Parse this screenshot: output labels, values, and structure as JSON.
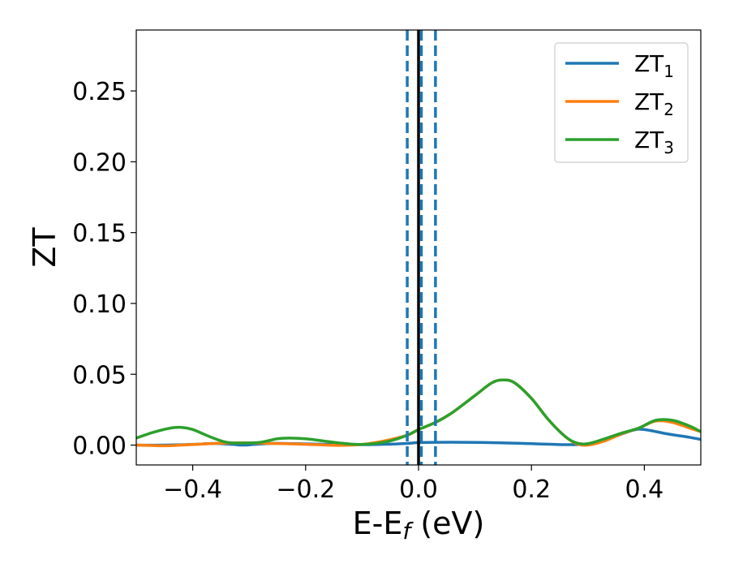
{
  "chart_data": {
    "type": "line",
    "xlabel": "E-E",
    "xlabel_sub": "f",
    "xlabel_unit": " (eV)",
    "ylabel": "ZT",
    "xlim": [
      -0.5,
      0.5
    ],
    "ylim": [
      -0.014,
      0.293
    ],
    "xticks": [
      -0.4,
      -0.2,
      0.0,
      0.2,
      0.4
    ],
    "xtick_labels": [
      "−0.4",
      "−0.2",
      "0.0",
      "0.2",
      "0.4"
    ],
    "yticks": [
      0.0,
      0.05,
      0.1,
      0.15,
      0.2,
      0.25
    ],
    "ytick_labels": [
      "0.00",
      "0.05",
      "0.10",
      "0.15",
      "0.20",
      "0.25"
    ],
    "grid": false,
    "legend_position": "top-right",
    "vlines": [
      {
        "x": 0.0,
        "style": "solid",
        "color": "#000000"
      },
      {
        "x": -0.02,
        "style": "dashed",
        "color": "#1f77b4"
      },
      {
        "x": 0.005,
        "style": "dashed",
        "color": "#1f77b4"
      },
      {
        "x": 0.03,
        "style": "dashed",
        "color": "#1f77b4"
      }
    ],
    "series": [
      {
        "name": "ZT",
        "name_sub": "1",
        "color": "#1f77b4",
        "x": [
          -0.5,
          -0.45,
          -0.4,
          -0.36,
          -0.33,
          -0.31,
          -0.29,
          -0.26,
          -0.22,
          -0.18,
          -0.14,
          -0.1,
          -0.06,
          -0.02,
          0.0,
          0.03,
          0.08,
          0.12,
          0.16,
          0.2,
          0.24,
          0.27,
          0.3,
          0.34,
          0.38,
          0.4,
          0.44,
          0.48,
          0.5
        ],
        "y": [
          0.0,
          0.0,
          0.0005,
          0.0012,
          0.0005,
          0.0,
          0.0005,
          0.0012,
          0.001,
          0.0007,
          0.0004,
          0.0003,
          0.0006,
          0.0012,
          0.0018,
          0.002,
          0.002,
          0.0018,
          0.0015,
          0.001,
          0.0005,
          0.0003,
          0.001,
          0.005,
          0.0105,
          0.011,
          0.008,
          0.0055,
          0.004
        ]
      },
      {
        "name": "ZT",
        "name_sub": "2",
        "color": "#ff7f0e",
        "x": [
          -0.5,
          -0.45,
          -0.42,
          -0.38,
          -0.34,
          -0.3,
          -0.26,
          -0.22,
          -0.18,
          -0.14,
          -0.1,
          -0.06,
          -0.02,
          0.0,
          0.03,
          0.06,
          0.1,
          0.13,
          0.15,
          0.17,
          0.2,
          0.23,
          0.26,
          0.28,
          0.3,
          0.33,
          0.36,
          0.39,
          0.42,
          0.45,
          0.48,
          0.5
        ],
        "y": [
          0.0,
          -0.0005,
          0.0,
          0.0008,
          0.0015,
          0.0016,
          0.0012,
          0.0008,
          0.0003,
          -0.0002,
          0.0005,
          0.003,
          0.007,
          0.011,
          0.016,
          0.023,
          0.035,
          0.044,
          0.046,
          0.044,
          0.033,
          0.018,
          0.006,
          0.001,
          0.0,
          0.003,
          0.008,
          0.012,
          0.017,
          0.016,
          0.012,
          0.0095
        ]
      },
      {
        "name": "ZT",
        "name_sub": "3",
        "color": "#2ca02c",
        "x": [
          -0.5,
          -0.47,
          -0.44,
          -0.42,
          -0.4,
          -0.37,
          -0.34,
          -0.31,
          -0.28,
          -0.25,
          -0.23,
          -0.2,
          -0.17,
          -0.14,
          -0.11,
          -0.08,
          -0.05,
          -0.02,
          0.0,
          0.03,
          0.06,
          0.1,
          0.13,
          0.15,
          0.17,
          0.2,
          0.23,
          0.26,
          0.28,
          0.3,
          0.33,
          0.36,
          0.39,
          0.42,
          0.45,
          0.48,
          0.5
        ],
        "y": [
          0.005,
          0.009,
          0.012,
          0.0125,
          0.011,
          0.006,
          0.002,
          0.0015,
          0.002,
          0.0045,
          0.005,
          0.0045,
          0.003,
          0.0015,
          0.0005,
          0.001,
          0.003,
          0.007,
          0.011,
          0.016,
          0.023,
          0.035,
          0.044,
          0.046,
          0.044,
          0.033,
          0.018,
          0.006,
          0.0015,
          0.001,
          0.0045,
          0.0085,
          0.012,
          0.0175,
          0.0175,
          0.0135,
          0.0095
        ]
      }
    ]
  }
}
